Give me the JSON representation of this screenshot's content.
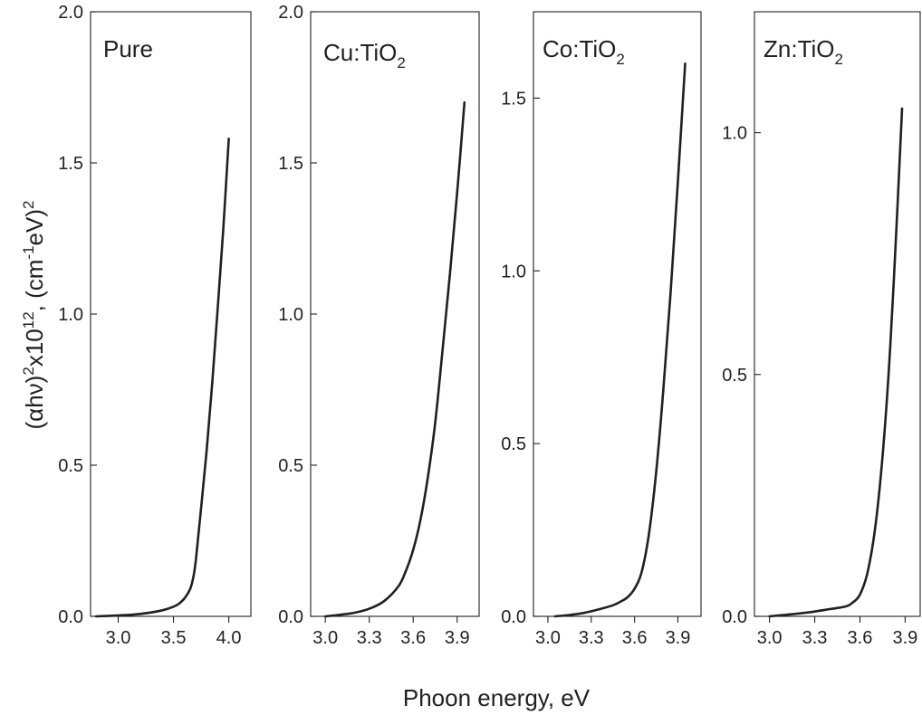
{
  "chart_data": {
    "type": "line",
    "xlabel": "Phoon energy, eV",
    "ylabel": {
      "prefix": "(",
      "alpha": "α",
      "h": "h",
      "nu": "ν",
      "close": ")",
      "sq": "2",
      "times": "x10",
      "exp": "12",
      "sep": ", (cm",
      "neg1": "-1",
      "ev": "eV)",
      "sq2": "2"
    },
    "panels": [
      {
        "title": "Pure",
        "title_sub": "",
        "xlim": [
          2.75,
          4.2
        ],
        "ylim": [
          0,
          2.0
        ],
        "x_ticks": [
          3.0,
          3.5,
          4.0
        ],
        "x_tick_labels": [
          "3.0",
          "3.5",
          "4.0"
        ],
        "y_ticks": [
          0.0,
          0.5,
          1.0,
          1.5,
          2.0
        ],
        "y_tick_labels": [
          "0.0",
          "0.5",
          "1.0",
          "1.5",
          "2.0"
        ],
        "series": [
          {
            "x": [
              2.8,
              3.0,
              3.2,
              3.4,
              3.5,
              3.55,
              3.6,
              3.65,
              3.68,
              3.7,
              3.72,
              3.75,
              3.8,
              3.85,
              3.9,
              3.95,
              4.0
            ],
            "y": [
              0.0,
              0.003,
              0.008,
              0.02,
              0.032,
              0.042,
              0.06,
              0.09,
              0.13,
              0.18,
              0.25,
              0.36,
              0.55,
              0.77,
              1.02,
              1.28,
              1.58
            ]
          }
        ]
      },
      {
        "title": "Cu:TiO",
        "title_sub": "2",
        "xlim": [
          2.9,
          4.05
        ],
        "ylim": [
          0,
          2.0
        ],
        "x_ticks": [
          3.0,
          3.3,
          3.6,
          3.9
        ],
        "x_tick_labels": [
          "3.0",
          "3.3",
          "3.6",
          "3.9"
        ],
        "y_ticks": [
          0.0,
          0.5,
          1.0,
          1.5,
          2.0
        ],
        "y_tick_labels": [
          "0.0",
          "0.5",
          "1.0",
          "1.5",
          "2.0"
        ],
        "series": [
          {
            "x": [
              3.0,
              3.1,
              3.2,
              3.3,
              3.4,
              3.5,
              3.55,
              3.6,
              3.65,
              3.7,
              3.75,
              3.8,
              3.85,
              3.9,
              3.95
            ],
            "y": [
              0.0,
              0.005,
              0.012,
              0.025,
              0.05,
              0.1,
              0.15,
              0.22,
              0.32,
              0.46,
              0.64,
              0.88,
              1.13,
              1.4,
              1.7
            ]
          }
        ]
      },
      {
        "title": "Co:TiO",
        "title_sub": "2",
        "xlim": [
          2.9,
          4.06
        ],
        "ylim": [
          0,
          1.75
        ],
        "x_ticks": [
          3.0,
          3.3,
          3.6,
          3.9
        ],
        "x_tick_labels": [
          "3.0",
          "3.3",
          "3.6",
          "3.9"
        ],
        "y_ticks": [
          0.0,
          0.5,
          1.0,
          1.5
        ],
        "y_tick_labels": [
          "0.0",
          "0.5",
          "1.0",
          "1.5"
        ],
        "series": [
          {
            "x": [
              3.05,
              3.15,
              3.25,
              3.35,
              3.45,
              3.5,
              3.55,
              3.6,
              3.65,
              3.7,
              3.75,
              3.8,
              3.85,
              3.9,
              3.95
            ],
            "y": [
              0.0,
              0.004,
              0.01,
              0.02,
              0.032,
              0.042,
              0.055,
              0.08,
              0.13,
              0.24,
              0.42,
              0.66,
              0.94,
              1.26,
              1.6
            ]
          }
        ]
      },
      {
        "title": "Zn:TiO",
        "title_sub": "2",
        "xlim": [
          2.9,
          4.0
        ],
        "ylim": [
          0,
          1.25
        ],
        "x_ticks": [
          3.0,
          3.3,
          3.6,
          3.9
        ],
        "x_tick_labels": [
          "3.0",
          "3.3",
          "3.6",
          "3.9"
        ],
        "y_ticks": [
          0.0,
          0.5,
          1.0
        ],
        "y_tick_labels": [
          "0.0",
          "0.5",
          "1.0"
        ],
        "series": [
          {
            "x": [
              3.0,
              3.1,
              3.2,
              3.3,
              3.4,
              3.5,
              3.55,
              3.6,
              3.65,
              3.7,
              3.75,
              3.8,
              3.85,
              3.88
            ],
            "y": [
              0.0,
              0.003,
              0.006,
              0.01,
              0.015,
              0.02,
              0.028,
              0.045,
              0.09,
              0.18,
              0.33,
              0.55,
              0.85,
              1.05
            ]
          }
        ]
      }
    ]
  }
}
